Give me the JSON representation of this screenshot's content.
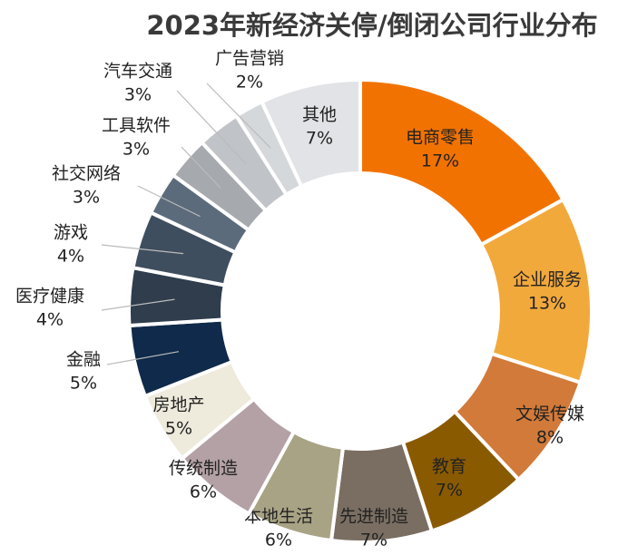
{
  "chart_data": {
    "type": "donut",
    "title": "2023年新经济关停/倒闭公司行业分布",
    "categories": [
      "电商零售",
      "企业服务",
      "文娱传媒",
      "教育",
      "先进制造",
      "本地生活",
      "传统制造",
      "房地产",
      "金融",
      "医疗健康",
      "游戏",
      "社交网络",
      "工具软件",
      "汽车交通",
      "广告营销",
      "其他"
    ],
    "values": [
      17,
      13,
      8,
      7,
      7,
      6,
      6,
      5,
      5,
      4,
      4,
      3,
      3,
      3,
      2,
      7
    ],
    "value_labels": [
      "17%",
      "13%",
      "8%",
      "7%",
      "7%",
      "6%",
      "6%",
      "5%",
      "5%",
      "4%",
      "4%",
      "3%",
      "3%",
      "3%",
      "2%",
      "7%"
    ],
    "colors": [
      "#f27200",
      "#f2a93b",
      "#d27a3a",
      "#8a5a00",
      "#7a6e62",
      "#a8a384",
      "#b4a1a5",
      "#eeeadc",
      "#0f2a4a",
      "#2f3d4d",
      "#3f4e5e",
      "#5b6b7b",
      "#a6a9ad",
      "#c0c3c7",
      "#d5d8db",
      "#e1e3e6"
    ]
  }
}
